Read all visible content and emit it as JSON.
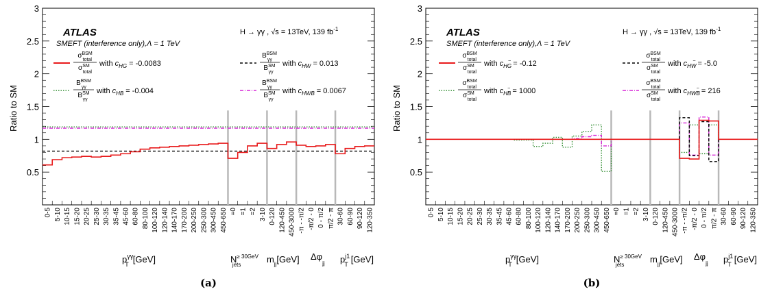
{
  "chart_data": [
    {
      "type": "line",
      "panel_label": "(a)",
      "ylabel": "Ratio to SM",
      "ylim": [
        0,
        3
      ],
      "yticks": [
        "0.5",
        "1",
        "1.5",
        "2",
        "2.5",
        "3"
      ],
      "experiment": "ATLAS",
      "header": "H → γγ , √s = 13TeV, 139 fb",
      "header_sup": "-1",
      "model": "SMEFT (interference only),Λ = 1 TeV",
      "categories": [
        "0-5",
        "5-10",
        "10-15",
        "15-20",
        "20-25",
        "25-30",
        "30-35",
        "35-45",
        "45-60",
        "60-80",
        "80-100",
        "100-120",
        "120-140",
        "140-170",
        "170-200",
        "200-250",
        "250-300",
        "300-450",
        "450-650",
        "=0",
        "=1",
        "=2",
        "3-10",
        "0-120",
        "120-450",
        "450-3000",
        "-π - -π/2",
        "-π/2 - 0",
        "0 - π/2",
        "π/2 - π",
        "30-60",
        "60-90",
        "90-120",
        "120-350"
      ],
      "groups": [
        "p_T^γγ[GeV]",
        "N_jets^≥30GeV",
        "m_jj[GeV]",
        "Δφ_jj",
        "p_T^j1[GeV]"
      ],
      "series": [
        {
          "name": "σ_total^BSM / σ_total^SM with c_HG = -0.0083",
          "color": "#e8191a",
          "style": "solid",
          "values": [
            0.61,
            0.69,
            0.72,
            0.73,
            0.74,
            0.73,
            0.74,
            0.76,
            0.78,
            0.81,
            0.85,
            0.87,
            0.88,
            0.89,
            0.9,
            0.91,
            0.92,
            0.93,
            0.94,
            0.71,
            0.8,
            0.9,
            0.94,
            0.86,
            0.92,
            0.96,
            0.91,
            0.89,
            0.9,
            0.92,
            0.78,
            0.86,
            0.89,
            0.9
          ]
        },
        {
          "name": "B_γγ^BSM / B_γγ^SM with c_HW = 0.013",
          "color": "#000000",
          "style": "dashed",
          "values": [
            0.82,
            0.82,
            0.82,
            0.82,
            0.82,
            0.82,
            0.82,
            0.82,
            0.82,
            0.82,
            0.82,
            0.82,
            0.82,
            0.82,
            0.82,
            0.82,
            0.82,
            0.82,
            0.82,
            0.82,
            0.82,
            0.82,
            0.82,
            0.82,
            0.82,
            0.82,
            0.82,
            0.82,
            0.82,
            0.82,
            0.82,
            0.82,
            0.82,
            0.82
          ]
        },
        {
          "name": "B_γγ^BSM / B_γγ^SM with c_HB = -0.004",
          "color": "#2e8b2e",
          "style": "dotted",
          "values": [
            1.19,
            1.19,
            1.19,
            1.19,
            1.19,
            1.19,
            1.19,
            1.19,
            1.19,
            1.19,
            1.19,
            1.19,
            1.19,
            1.19,
            1.19,
            1.19,
            1.19,
            1.19,
            1.19,
            1.19,
            1.19,
            1.19,
            1.19,
            1.19,
            1.19,
            1.19,
            1.19,
            1.19,
            1.19,
            1.19,
            1.19,
            1.19,
            1.19,
            1.19
          ]
        },
        {
          "name": "B_γγ^BSM / B_γγ^SM with c_HWB = 0.0067",
          "color": "#d726d7",
          "style": "dashdot",
          "values": [
            1.17,
            1.17,
            1.17,
            1.17,
            1.17,
            1.17,
            1.17,
            1.17,
            1.17,
            1.17,
            1.17,
            1.17,
            1.17,
            1.17,
            1.17,
            1.17,
            1.17,
            1.17,
            1.17,
            1.17,
            1.17,
            1.17,
            1.17,
            1.17,
            1.17,
            1.17,
            1.17,
            1.17,
            1.17,
            1.17,
            1.17,
            1.17,
            1.17,
            1.17
          ]
        }
      ]
    },
    {
      "type": "line",
      "panel_label": "(b)",
      "ylabel": "Ratio to SM",
      "ylim": [
        0,
        3
      ],
      "yticks": [
        "0.5",
        "1",
        "1.5",
        "2",
        "2.5",
        "3"
      ],
      "experiment": "ATLAS",
      "header": "H → γγ , √s = 13TeV, 139 fb",
      "header_sup": "-1",
      "model": "SMEFT (interference only),Λ = 1 TeV",
      "categories": [
        "0-5",
        "5-10",
        "10-15",
        "15-20",
        "20-25",
        "25-30",
        "30-35",
        "35-45",
        "45-60",
        "60-80",
        "80-100",
        "100-120",
        "120-140",
        "140-170",
        "170-200",
        "200-250",
        "250-300",
        "300-450",
        "450-650",
        "=0",
        "=1",
        "=2",
        "3-10",
        "0-120",
        "120-450",
        "450-3000",
        "-π - -π/2",
        "-π/2 - 0",
        "0 - π/2",
        "π/2 - π",
        "30-60",
        "60-90",
        "90-120",
        "120-350"
      ],
      "groups": [
        "p_T^γγ[GeV]",
        "N_jets^≥30GeV",
        "m_jj[GeV]",
        "Δφ_jj",
        "p_T^j1[GeV]"
      ],
      "series": [
        {
          "name": "σ_total^BSM / σ_total^SM with c_HG~ = -0.12",
          "color": "#e8191a",
          "style": "solid",
          "values": [
            1,
            1,
            1,
            1,
            1,
            1,
            1,
            1,
            1,
            1,
            1,
            1,
            1,
            1,
            1,
            1,
            1,
            1,
            1,
            1,
            1,
            1,
            1,
            1,
            1,
            1,
            0.71,
            0.7,
            1.29,
            1.28,
            1,
            1,
            1,
            1
          ]
        },
        {
          "name": "σ_total^BSM / σ_total^SM with c_HW~ = -5.0",
          "color": "#000000",
          "style": "dashed",
          "values": [
            1,
            1,
            1,
            1,
            1,
            1,
            1,
            1,
            1,
            1,
            1,
            1,
            1,
            1,
            1,
            1,
            1,
            1,
            1,
            1,
            1,
            1,
            1,
            1,
            1,
            1,
            1.33,
            0.75,
            1.27,
            0.66,
            1,
            1,
            1,
            1
          ]
        },
        {
          "name": "σ_total^BSM / σ_total^SM with c_HB~ = 1000",
          "color": "#2e8b2e",
          "style": "dotted",
          "values": [
            1,
            1,
            1,
            1,
            1,
            1,
            1,
            1,
            1,
            0.99,
            0.99,
            0.89,
            0.94,
            1.03,
            0.88,
            1.05,
            1.12,
            1.22,
            0.51,
            1,
            1,
            1,
            1,
            1,
            1,
            1,
            0.8,
            1.22,
            0.78,
            1.22,
            1,
            1,
            1,
            1
          ]
        },
        {
          "name": "σ_total^BSM / σ_total^SM with c_HW~B = 216",
          "color": "#d726d7",
          "style": "dashdot",
          "values": [
            1,
            1,
            1,
            1,
            1,
            1,
            1,
            1,
            1,
            1,
            1,
            1,
            1,
            1,
            1,
            1.01,
            1.04,
            1.06,
            0.9,
            1,
            1,
            1,
            1,
            1,
            1,
            1,
            1.25,
            0.76,
            1.34,
            0.76,
            1,
            1,
            1,
            1
          ]
        }
      ]
    }
  ],
  "legend_a": {
    "l1_num": "σ",
    "l1_num_sup": "BSM",
    "l1_num_sub": "total",
    "l1_den": "σ",
    "l1_den_sup": "SM",
    "l1_den_sub": "total",
    "l1_with": "with",
    "l1_c": "c",
    "l1_csub": "HG",
    "l1_val": "= -0.0083",
    "l2_num": "B",
    "l2_num_sup": "BSM",
    "l2_num_sub": "γγ",
    "l2_den": "B",
    "l2_den_sup": "SM",
    "l2_den_sub": "γγ",
    "l2_with": "with",
    "l2_c": "c",
    "l2_csub": "HW",
    "l2_val": "= 0.013",
    "l3_num": "B",
    "l3_num_sup": "BSM",
    "l3_num_sub": "γγ",
    "l3_den": "B",
    "l3_den_sup": "SM",
    "l3_den_sub": "γγ",
    "l3_with": "with",
    "l3_c": "c",
    "l3_csub": "HB",
    "l3_val": "= -0.004",
    "l4_num": "B",
    "l4_num_sup": "BSM",
    "l4_num_sub": "γγ",
    "l4_den": "B",
    "l4_den_sup": "SM",
    "l4_den_sub": "γγ",
    "l4_with": "with",
    "l4_c": "c",
    "l4_csub": "HWB",
    "l4_val": "= 0.0067"
  },
  "legend_b": {
    "l1_with": "with",
    "l1_c": "c",
    "l1_csub": "HG",
    "l1_tilde": "~",
    "l1_val": "= -0.12",
    "l2_with": "with",
    "l2_c": "c",
    "l2_csub": "HW",
    "l2_tilde": "~",
    "l2_val": "= -5.0",
    "l3_with": "with",
    "l3_c": "c",
    "l3_csub": "HB",
    "l3_tilde": "~",
    "l3_val": "= 1000",
    "l4_with": "with",
    "l4_c": "c",
    "l4_csub": "HWB",
    "l4_tilde": "~",
    "l4_val": "= 216",
    "sig": "σ",
    "bsm": "BSM",
    "sm": "SM",
    "total": "total"
  },
  "group_labels": {
    "ptgg": "p",
    "ptgg_sub": "T",
    "ptgg_sup": "γγ",
    "ptgg_unit": "[GeV]",
    "njets": "N",
    "njets_sub": "jets",
    "njets_sup": "≥ 30GeV",
    "mjj": "m",
    "mjj_sub": "jj",
    "mjj_unit": "[GeV]",
    "dphi": "Δφ",
    "dphi_sub": "jj",
    "ptj1": "p",
    "ptj1_sub": "T",
    "ptj1_sup": "j1",
    "ptj1_unit": "[GeV]"
  }
}
